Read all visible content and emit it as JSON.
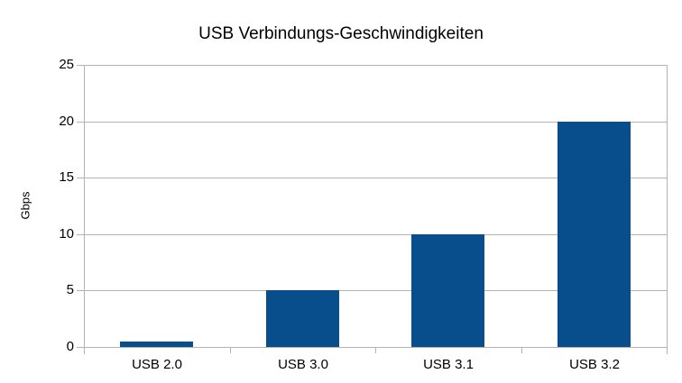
{
  "chart_data": {
    "type": "bar",
    "title": "USB Verbindungs-Geschwindigkeiten",
    "xlabel": "",
    "ylabel": "Gbps",
    "categories": [
      "USB 2.0",
      "USB 3.0",
      "USB 3.1",
      "USB 3.2"
    ],
    "values": [
      0.48,
      5,
      10,
      20
    ],
    "ylim": [
      0,
      25
    ],
    "yticks": [
      0,
      5,
      10,
      15,
      20,
      25
    ],
    "grid": "horizontal",
    "legend": "none",
    "colors": {
      "bar": "#084d8c",
      "axis": "#b3b3b3",
      "gridline": "#b3b3b3",
      "text": "#000000",
      "background": "#ffffff"
    }
  }
}
